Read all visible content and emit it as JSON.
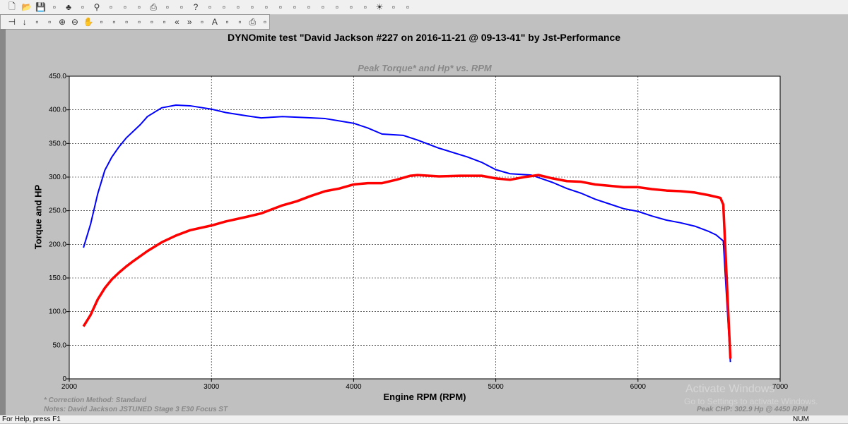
{
  "toolbar1": {
    "icons": [
      "new-file",
      "open-folder",
      "save",
      "open-run",
      "tree",
      "cut",
      "find",
      "copy",
      "paste",
      "book",
      "print",
      "print-preview",
      "wizard",
      "help",
      "context-help",
      "window-config",
      "tools",
      "graph-window",
      "graph-edit",
      "columns",
      "table",
      "waveform",
      "hq",
      "blank",
      "window-config-2",
      "tools-2",
      "lightbulb",
      "magic",
      "camera"
    ]
  },
  "toolbar2": {
    "icons": [
      "pin",
      "cursor-down",
      "compass",
      "glasses",
      "zoom-in",
      "zoom-out",
      "pan-hand",
      "stamp",
      "stamp-2",
      "star",
      "star-2",
      "window-config",
      "columns",
      "prev",
      "next",
      "graph-window",
      "font",
      "image",
      "book",
      "print",
      "print-preview"
    ],
    "prev_label": "«",
    "next_label": "»"
  },
  "title": "DYNOmite test \"David Jackson  #227 on 2016-11-21 @ 09-13-41\" by Jst-Performance",
  "notes": {
    "correction": "* Correction Method: Standard",
    "notes": "Notes: David Jackson JSTUNED Stage 3 E30 Focus ST",
    "peak": "Peak CHP: 302.9 Hp @ 4450 RPM",
    "watermark1": "Activate Windows",
    "watermark2": "Go to Settings to activate Windows."
  },
  "status": {
    "help": "For Help, press F1",
    "num": "NUM"
  },
  "chart_data": {
    "type": "line",
    "title": "Peak Torque* and Hp* vs. RPM",
    "xlabel": "Engine RPM (RPM)",
    "ylabel": "Torque and HP",
    "xlim": [
      2000,
      7000
    ],
    "ylim": [
      0,
      450
    ],
    "xticks": [
      2000,
      3000,
      4000,
      5000,
      6000,
      7000
    ],
    "yticks": [
      "0",
      "50.0",
      "100.0",
      "150.0",
      "200.0",
      "250.0",
      "300.0",
      "350.0",
      "400.0",
      "450.0"
    ],
    "grid": true,
    "series": [
      {
        "color": "#0000ff",
        "points": [
          [
            2100,
            195
          ],
          [
            2150,
            230
          ],
          [
            2200,
            275
          ],
          [
            2250,
            310
          ],
          [
            2300,
            330
          ],
          [
            2350,
            345
          ],
          [
            2400,
            358
          ],
          [
            2500,
            378
          ],
          [
            2550,
            390
          ],
          [
            2650,
            403
          ],
          [
            2750,
            407
          ],
          [
            2850,
            406
          ],
          [
            3000,
            401
          ],
          [
            3100,
            396
          ],
          [
            3250,
            391
          ],
          [
            3350,
            388
          ],
          [
            3500,
            390
          ],
          [
            3600,
            389
          ],
          [
            3800,
            387
          ],
          [
            4000,
            380
          ],
          [
            4100,
            373
          ],
          [
            4200,
            364
          ],
          [
            4350,
            362
          ],
          [
            4450,
            355
          ],
          [
            4600,
            343
          ],
          [
            4800,
            330
          ],
          [
            4900,
            322
          ],
          [
            5000,
            311
          ],
          [
            5100,
            305
          ],
          [
            5250,
            303
          ],
          [
            5400,
            292
          ],
          [
            5500,
            283
          ],
          [
            5600,
            276
          ],
          [
            5700,
            267
          ],
          [
            5800,
            260
          ],
          [
            5900,
            253
          ],
          [
            6000,
            249
          ],
          [
            6100,
            242
          ],
          [
            6200,
            236
          ],
          [
            6300,
            232
          ],
          [
            6400,
            227
          ],
          [
            6500,
            219
          ],
          [
            6550,
            214
          ],
          [
            6600,
            205
          ],
          [
            6650,
            25
          ]
        ]
      },
      {
        "color": "#ff0000",
        "points": [
          [
            2100,
            78
          ],
          [
            2150,
            95
          ],
          [
            2200,
            118
          ],
          [
            2250,
            135
          ],
          [
            2300,
            148
          ],
          [
            2350,
            158
          ],
          [
            2400,
            167
          ],
          [
            2450,
            175
          ],
          [
            2550,
            190
          ],
          [
            2650,
            203
          ],
          [
            2750,
            213
          ],
          [
            2850,
            221
          ],
          [
            3000,
            228
          ],
          [
            3100,
            234
          ],
          [
            3250,
            241
          ],
          [
            3350,
            246
          ],
          [
            3500,
            258
          ],
          [
            3600,
            264
          ],
          [
            3700,
            272
          ],
          [
            3800,
            279
          ],
          [
            3900,
            283
          ],
          [
            4000,
            289
          ],
          [
            4100,
            291
          ],
          [
            4200,
            291
          ],
          [
            4300,
            296
          ],
          [
            4400,
            302
          ],
          [
            4450,
            303
          ],
          [
            4600,
            301
          ],
          [
            4750,
            302
          ],
          [
            4900,
            302
          ],
          [
            5000,
            298
          ],
          [
            5100,
            296
          ],
          [
            5200,
            300
          ],
          [
            5300,
            303
          ],
          [
            5400,
            298
          ],
          [
            5500,
            294
          ],
          [
            5600,
            293
          ],
          [
            5700,
            289
          ],
          [
            5800,
            287
          ],
          [
            5900,
            285
          ],
          [
            6000,
            285
          ],
          [
            6100,
            282
          ],
          [
            6200,
            280
          ],
          [
            6300,
            279
          ],
          [
            6400,
            277
          ],
          [
            6500,
            273
          ],
          [
            6580,
            269
          ],
          [
            6600,
            259
          ],
          [
            6650,
            30
          ]
        ]
      }
    ]
  }
}
